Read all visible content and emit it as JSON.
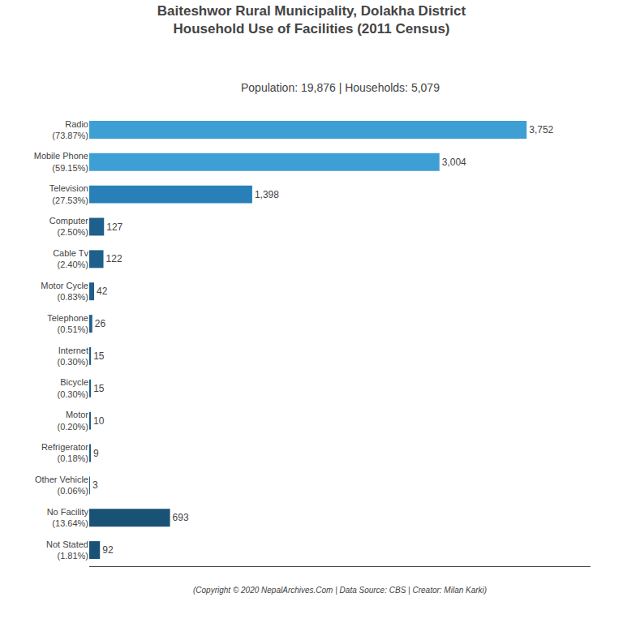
{
  "chart_data": {
    "type": "bar",
    "orientation": "horizontal",
    "title": "Baiteshwor Rural Municipality, Dolakha District\nHousehold Use of Facilities (2011 Census)",
    "subtitle": "Population: 19,876 | Households: 5,079",
    "annotations": [
      "(Copyright © 2020 NepalArchives.Com | Data Source: CBS | Creator: Milan Karki)"
    ],
    "categories": [
      "Radio\n(73.87%)",
      "Mobile Phone\n(59.15%)",
      "Television\n(27.53%)",
      "Computer\n(2.50%)",
      "Cable Tv\n(2.40%)",
      "Motor Cycle\n(0.83%)",
      "Telephone\n(0.51%)",
      "Internet\n(0.30%)",
      "Bicycle\n(0.30%)",
      "Motor\n(0.20%)",
      "Refrigerator\n(0.18%)",
      "Other Vehicle\n(0.06%)",
      "No Facility\n(13.64%)",
      "Not Stated\n(1.81%)"
    ],
    "values": [
      3752,
      3004,
      1398,
      127,
      122,
      42,
      26,
      15,
      15,
      10,
      9,
      3,
      693,
      92
    ],
    "value_labels": [
      "3,752",
      "3,004",
      "1,398",
      "127",
      "122",
      "42",
      "26",
      "15",
      "15",
      "10",
      "9",
      "3",
      "693",
      "92"
    ],
    "colors": [
      "#3d9fd3",
      "#3d9fd3",
      "#2980b9",
      "#1f5f8b",
      "#1f5f8b",
      "#1f5f8b",
      "#1f5f8b",
      "#1f5f8b",
      "#1f5f8b",
      "#1f5f8b",
      "#1f5f8b",
      "#1f5f8b",
      "#1a5276",
      "#1a5276"
    ],
    "xlim": [
      0,
      4300
    ],
    "data_labels": true,
    "tick_labels": "y",
    "grid": false
  }
}
